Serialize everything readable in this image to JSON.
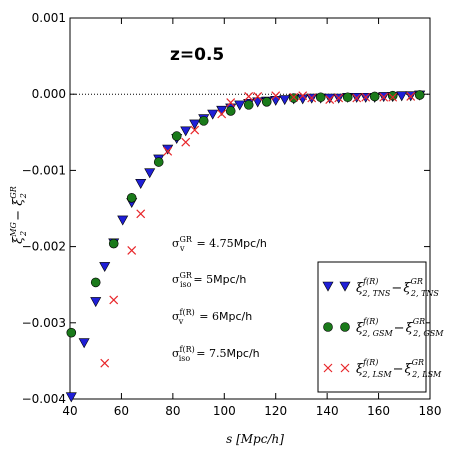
{
  "chart_data": {
    "type": "scatter",
    "title": "z=0.5",
    "xlabel": "s [Mpc/h]",
    "ylabel": "ξ2^MG − ξ2^GR",
    "xlim": [
      40,
      180
    ],
    "ylim": [
      -0.004,
      0.001
    ],
    "x_ticks": [
      "40",
      "60",
      "80",
      "100",
      "120",
      "140",
      "160",
      "180"
    ],
    "y_ticks": [
      "0.001",
      "0.000",
      "−0.001",
      "−0.002",
      "−0.003",
      "−0.004"
    ],
    "reference_line": {
      "y": 0.0,
      "style": "dotted"
    },
    "grid": false,
    "legend_position": "bottom-right",
    "annotations": [
      "σv^GR = 4.75Mpc/h",
      "σiso^GR = 5Mpc/h",
      "σv^f(R) = 6Mpc/h",
      "σiso^f(R) = 7.5Mpc/h"
    ],
    "series": [
      {
        "name": "ξ2,TNS^f(R) − ξ2,TNS^GR",
        "marker": "triangle-down",
        "color": "#1f1fd6",
        "x": [
          40.5,
          45.5,
          50,
          53.5,
          57,
          60.5,
          64,
          67.5,
          71,
          74.5,
          78,
          81.5,
          85,
          88.5,
          92,
          95.5,
          99,
          102.5,
          106,
          109.5,
          113,
          116.5,
          120,
          123.5,
          127,
          130.5,
          134,
          137.5,
          141,
          144.5,
          148,
          151.5,
          155,
          158.5,
          162,
          165.5,
          169,
          172.5,
          176
        ],
        "y": [
          -0.00397,
          -0.00326,
          -0.00272,
          -0.00226,
          -0.00195,
          -0.00165,
          -0.00142,
          -0.00117,
          -0.00103,
          -0.00085,
          -0.00072,
          -0.00058,
          -0.00048,
          -0.00039,
          -0.00032,
          -0.00026,
          -0.00021,
          -0.00018,
          -0.00014,
          -0.00012,
          -0.0001,
          -9e-05,
          -8e-05,
          -7e-05,
          -6e-05,
          -6e-05,
          -5e-05,
          -5e-05,
          -5e-05,
          -5e-05,
          -4e-05,
          -4e-05,
          -4e-05,
          -4e-05,
          -3e-05,
          -3e-05,
          -2e-05,
          -2e-05,
          -1e-05
        ]
      },
      {
        "name": "ξ2,GSM^f(R) − ξ2,GSM^GR",
        "marker": "circle",
        "color": "#1a7a1a",
        "x": [
          40.5,
          50,
          57,
          64,
          74.5,
          81.5,
          92,
          102.5,
          109.5,
          116.5,
          127,
          137.5,
          148,
          158.5,
          165.5,
          176
        ],
        "y": [
          -0.00313,
          -0.00247,
          -0.00196,
          -0.00136,
          -0.00089,
          -0.00055,
          -0.00035,
          -0.00022,
          -0.00014,
          -0.0001,
          -5e-05,
          -4e-05,
          -4e-05,
          -3e-05,
          -2e-05,
          -1e-05
        ]
      },
      {
        "name": "ξ2,LSM^f(R) − ξ2,LSM^GR",
        "marker": "x",
        "color": "#e8262a",
        "x": [
          53.5,
          57,
          64,
          67.5,
          78,
          85,
          88.5,
          99,
          102.5,
          109.5,
          113,
          120,
          127,
          130.5,
          134,
          141,
          144.5,
          151.5,
          155,
          162,
          165.5,
          172.5
        ],
        "y": [
          -0.00353,
          -0.0027,
          -0.00205,
          -0.00157,
          -0.00075,
          -0.00063,
          -0.00047,
          -0.00026,
          -0.00011,
          -3e-05,
          -3e-05,
          -2e-05,
          -4e-05,
          -2e-05,
          -5e-05,
          -7e-05,
          -5e-05,
          -5e-05,
          -4e-05,
          -4e-05,
          -4e-05,
          -3e-05
        ]
      }
    ]
  },
  "colors": {
    "blue": "#1f1fd6",
    "green": "#1a7a1a",
    "red": "#e8262a"
  }
}
